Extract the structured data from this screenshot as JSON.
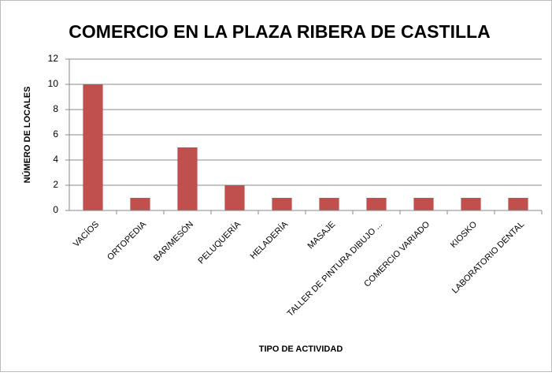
{
  "chart_data": {
    "type": "bar",
    "title": "COMERCIO EN LA PLAZA RIBERA DE CASTILLA",
    "x_label": "TIPO DE ACTIVIDAD",
    "y_label": "NÚMERO DE LOCALES",
    "categories": [
      "VACÍOS",
      "ORTOPEDIA",
      "BAR/MESÓN",
      "PELUQUERÍA",
      "HELADERÍA",
      "MASAJE",
      "TALLER DE PINTURA DIBUJO ...",
      "COMERCIO VARIADO",
      "KIOSKO",
      "LABORATORIO DENTAL"
    ],
    "values": [
      10,
      1,
      5,
      2,
      1,
      1,
      1,
      1,
      1,
      1
    ],
    "color": "#c0504d",
    "ylim": [
      0,
      12
    ],
    "yticks": [
      0,
      2,
      4,
      6,
      8,
      10,
      12
    ],
    "grid": true
  }
}
